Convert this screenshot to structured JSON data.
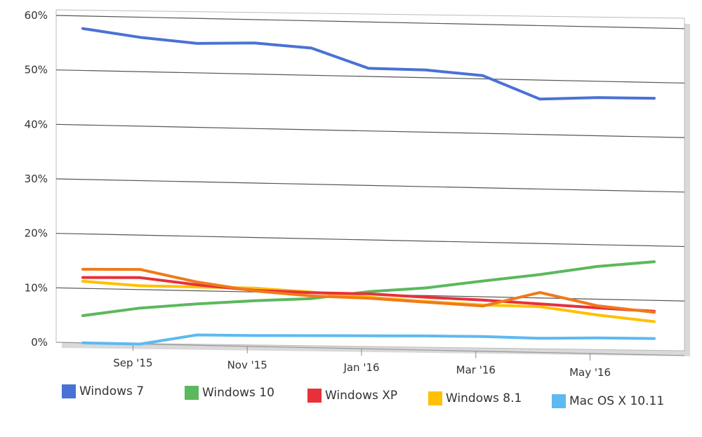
{
  "chart_data": {
    "type": "line",
    "title": "",
    "xlabel": "",
    "ylabel": "",
    "ylim": [
      0,
      60
    ],
    "y_ticks": [
      0,
      10,
      20,
      30,
      40,
      50,
      60
    ],
    "y_tick_labels": [
      "0%",
      "10%",
      "20%",
      "30%",
      "40%",
      "50%",
      "60%"
    ],
    "x_tick_labels": [
      "Sep '15",
      "Nov '15",
      "Jan '16",
      "Mar '16",
      "May '16"
    ],
    "x_tick_positions": [
      1,
      3,
      5,
      7,
      9
    ],
    "x_range": [
      0,
      10
    ],
    "x": [
      0,
      1,
      2,
      3,
      4,
      5,
      6,
      7,
      8,
      9,
      10
    ],
    "grid": true,
    "legend_position": "bottom",
    "series": [
      {
        "name": "Windows 7",
        "color": "#4a72d4",
        "values": [
          57.7,
          56.3,
          55.4,
          55.7,
          55.0,
          51.5,
          51.4,
          50.6,
          46.5,
          47.0,
          47.1
        ]
      },
      {
        "name": "Windows 10",
        "color": "#5cb85c",
        "values": [
          5.0,
          6.6,
          7.6,
          8.4,
          9.0,
          10.5,
          11.4,
          12.9,
          14.3,
          16.0,
          17.1
        ]
      },
      {
        "name": "Windows XP",
        "color": "#e8303a",
        "values": [
          12.0,
          12.2,
          11.1,
          10.3,
          10.1,
          10.1,
          9.7,
          9.4,
          8.9,
          8.4,
          8.0
        ]
      },
      {
        "name": "Windows 8.1",
        "color": "#ffc000",
        "values": [
          11.3,
          10.7,
          10.7,
          10.7,
          10.2,
          9.5,
          8.9,
          8.5,
          8.4,
          7.1,
          6.1
        ]
      },
      {
        "name": "Mac OS X 10.11",
        "color": "#5eb9f0",
        "values": [
          0.0,
          0.0,
          1.9,
          2.0,
          2.2,
          2.4,
          2.6,
          2.7,
          2.6,
          2.9,
          3.0
        ]
      },
      {
        "name": "",
        "color": "#f07a1a",
        "values": [
          13.5,
          13.7,
          11.6,
          10.2,
          9.5,
          9.3,
          8.8,
          8.3,
          11.0,
          8.8,
          7.8
        ]
      }
    ]
  }
}
